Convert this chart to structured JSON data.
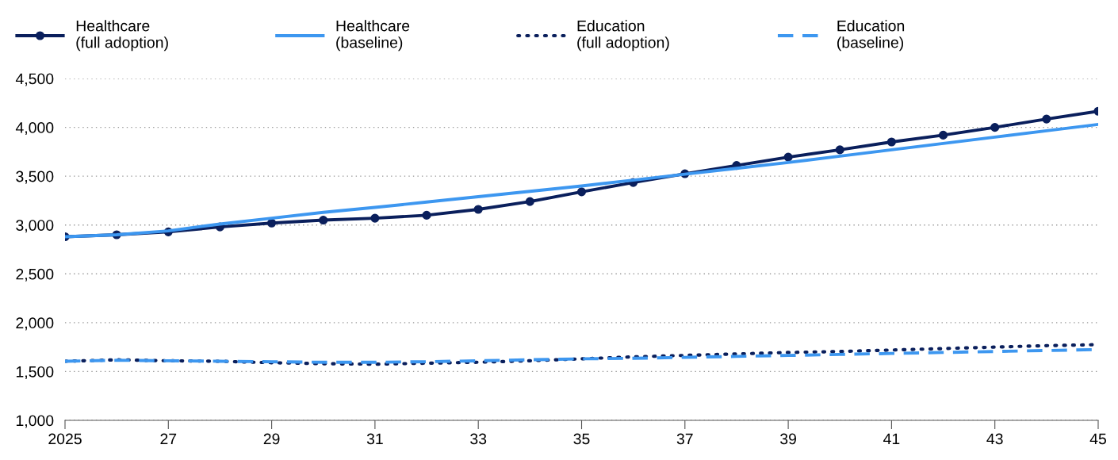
{
  "chart_data": {
    "type": "line",
    "x": [
      2025,
      2026,
      2027,
      2028,
      2029,
      2030,
      2031,
      2032,
      2033,
      2034,
      2035,
      2036,
      2037,
      2038,
      2039,
      2040,
      2041,
      2042,
      2043,
      2044,
      2045
    ],
    "series": [
      {
        "name": "Healthcare\n(full adoption)",
        "color": "#0a1f5c",
        "marker": "circle",
        "line_style": "solid",
        "values": [
          2880,
          2900,
          2930,
          2980,
          3020,
          3050,
          3070,
          3100,
          3160,
          3240,
          3340,
          3435,
          3525,
          3610,
          3695,
          3770,
          3850,
          3920,
          4000,
          4085,
          4165
        ]
      },
      {
        "name": "Healthcare\n(baseline)",
        "color": "#3d97f0",
        "marker": "none",
        "line_style": "solid",
        "values": [
          2880,
          2900,
          2940,
          3010,
          3070,
          3130,
          3180,
          3235,
          3290,
          3345,
          3400,
          3460,
          3520,
          3580,
          3640,
          3705,
          3770,
          3835,
          3900,
          3965,
          4030
        ]
      },
      {
        "name": "Education\n(full adoption)",
        "color": "#0a1f5c",
        "marker": "none",
        "line_style": "dotted",
        "values": [
          1605,
          1620,
          1610,
          1605,
          1590,
          1580,
          1575,
          1585,
          1595,
          1610,
          1630,
          1650,
          1665,
          1680,
          1695,
          1705,
          1720,
          1735,
          1750,
          1765,
          1775
        ]
      },
      {
        "name": "Education\n(baseline)",
        "color": "#3d97f0",
        "marker": "none",
        "line_style": "dashed",
        "values": [
          1605,
          1615,
          1610,
          1605,
          1600,
          1595,
          1595,
          1600,
          1610,
          1620,
          1630,
          1635,
          1645,
          1655,
          1665,
          1675,
          1685,
          1695,
          1705,
          1715,
          1725
        ]
      }
    ],
    "xlim": [
      2025,
      2045
    ],
    "xticks": [
      {
        "value": 2025,
        "label": "2025"
      },
      {
        "value": 2027,
        "label": "27"
      },
      {
        "value": 2029,
        "label": "29"
      },
      {
        "value": 2031,
        "label": "31"
      },
      {
        "value": 2033,
        "label": "33"
      },
      {
        "value": 2035,
        "label": "35"
      },
      {
        "value": 2037,
        "label": "37"
      },
      {
        "value": 2039,
        "label": "39"
      },
      {
        "value": 2041,
        "label": "41"
      },
      {
        "value": 2043,
        "label": "43"
      },
      {
        "value": 2045,
        "label": "45"
      }
    ],
    "ylim": [
      1000,
      4500
    ],
    "yticks": [
      {
        "value": 1000,
        "label": "1,000"
      },
      {
        "value": 1500,
        "label": "1,500"
      },
      {
        "value": 2000,
        "label": "2,000"
      },
      {
        "value": 2500,
        "label": "2,500"
      },
      {
        "value": 3000,
        "label": "3,000"
      },
      {
        "value": 3500,
        "label": "3,500"
      },
      {
        "value": 4000,
        "label": "4,000"
      },
      {
        "value": 4500,
        "label": "4,500"
      }
    ],
    "grid": "y",
    "legend": "top"
  }
}
